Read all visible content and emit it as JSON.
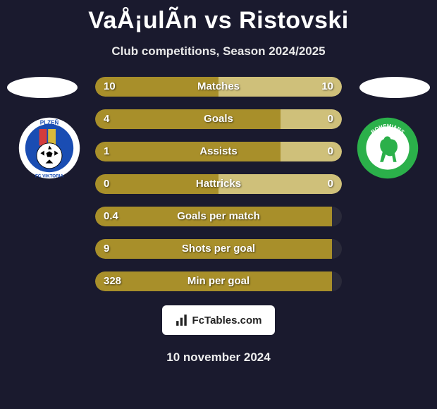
{
  "title": "VaÅ¡ulÃ­n vs Ristovski",
  "subtitle": "Club competitions, Season 2024/2025",
  "date_text": "10 november 2024",
  "brand_text": "FcTables.com",
  "colors": {
    "background": "#1a1a2e",
    "bar_left": "#a88f2a",
    "bar_right": "#cfc07a",
    "bar_track": "#2a2a3a",
    "disc": "#ffffff"
  },
  "crest_left": {
    "top_text": "PLZEŇ",
    "bottom_text": "FC VIKTORIA",
    "colors": {
      "ring": "#ffffff",
      "inner": "#1a4db3",
      "ball": "#ffffff",
      "red": "#d43c3c",
      "gold": "#d8b93a"
    }
  },
  "crest_right": {
    "top_text": "BOHEMIANS",
    "bottom_text": "PRAHA",
    "colors": {
      "ring": "#2bb04a",
      "inner": "#ffffff",
      "stroke": "#2bb04a"
    }
  },
  "bars": [
    {
      "label": "Matches",
      "left": "10",
      "right": "10",
      "left_pct": 50,
      "right_pct": 50,
      "empty_right": false
    },
    {
      "label": "Goals",
      "left": "4",
      "right": "0",
      "left_pct": 75,
      "right_pct": 25,
      "empty_right": false
    },
    {
      "label": "Assists",
      "left": "1",
      "right": "0",
      "left_pct": 75,
      "right_pct": 25,
      "empty_right": false
    },
    {
      "label": "Hattricks",
      "left": "0",
      "right": "0",
      "left_pct": 50,
      "right_pct": 50,
      "empty_right": false
    },
    {
      "label": "Goals per match",
      "left": "0.4",
      "right": "",
      "left_pct": 96,
      "right_pct": 0,
      "empty_right": true
    },
    {
      "label": "Shots per goal",
      "left": "9",
      "right": "",
      "left_pct": 96,
      "right_pct": 0,
      "empty_right": true
    },
    {
      "label": "Min per goal",
      "left": "328",
      "right": "",
      "left_pct": 96,
      "right_pct": 0,
      "empty_right": true
    }
  ]
}
